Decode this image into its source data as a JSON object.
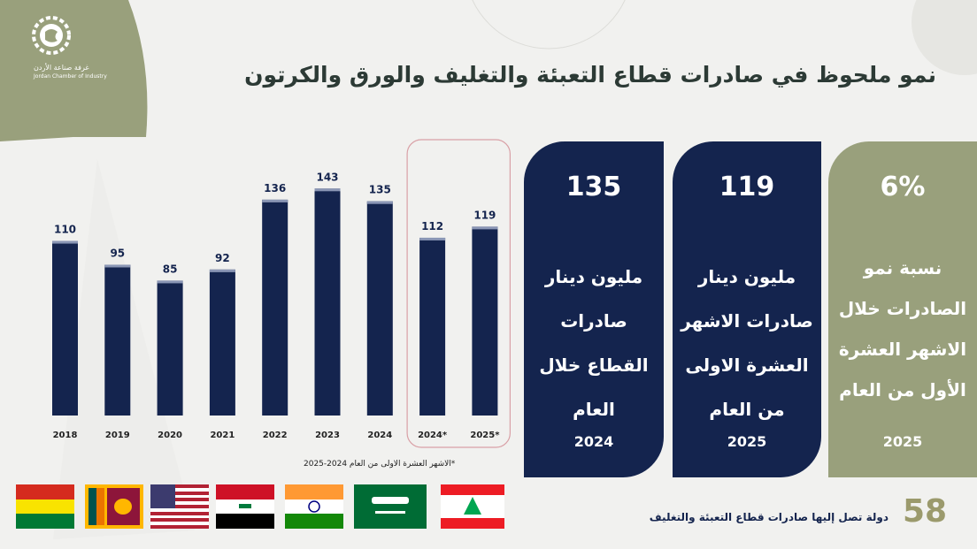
{
  "header": {
    "title": "نمو ملحوظ في صادرات قطاع التعبئة والتغليف والورق والكرتون",
    "logo_ar": "غرفة صناعة الأردن",
    "logo_en": "Jordan Chamber of Industry"
  },
  "chart_data": {
    "type": "bar",
    "categories": [
      "2018",
      "2019",
      "2020",
      "2021",
      "2022",
      "2023",
      "2024",
      "2024*",
      "2025*"
    ],
    "values": [
      110,
      95,
      85,
      92,
      136,
      143,
      135,
      112,
      119
    ],
    "highlighted_categories": [
      "2024*",
      "2025*"
    ],
    "bar_color": "#14244e",
    "highlight_border_color": "#d9a0a6",
    "footnote": "*الاشهر العشرة الاولى من العام 2024-2025"
  },
  "cards": [
    {
      "value": "135",
      "lines": [
        "مليون دينار",
        "صادرات",
        "القطاع خلال",
        "العام"
      ],
      "year": "2024",
      "color": "#14244e"
    },
    {
      "value": "119",
      "lines": [
        "مليون دينار",
        "صادرات الاشهر",
        "العشرة الاولى",
        "من العام"
      ],
      "year": "2025",
      "color": "#14244e"
    },
    {
      "value": "6%",
      "lines": [
        "نسبة نمو",
        "الصادرات خلال",
        "الاشهر العشرة",
        "الأول من العام"
      ],
      "year": "2025",
      "color": "#99a07c"
    }
  ],
  "footer": {
    "count": "58",
    "text": "دولة تصل إليها صادرات قطاع التعبئة  والتغليف",
    "flags": [
      "bolivia-flag",
      "sri-lanka-flag",
      "usa-flag",
      "iraq-flag",
      "india-flag",
      "saudi-arabia-flag",
      "lebanon-flag"
    ]
  }
}
